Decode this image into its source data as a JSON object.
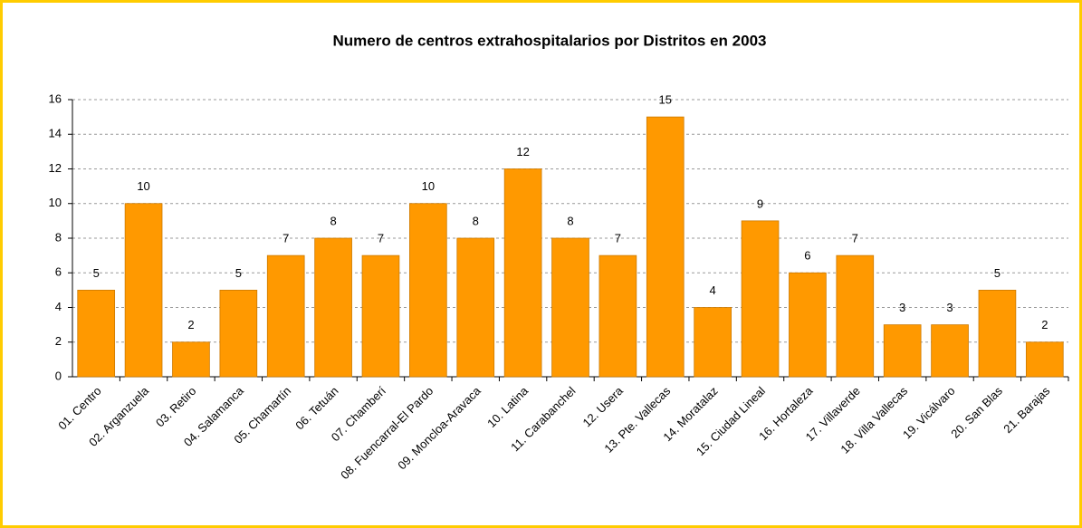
{
  "chart_data": {
    "type": "bar",
    "title": "Numero de centros extrahospitalarios por Distritos en 2003",
    "categories": [
      "01. Centro",
      "02. Arganzuela",
      "03. Retiro",
      "04. Salamanca",
      "05. Chamartín",
      "06. Tetuán",
      "07. Chamberí",
      "08. Fuencarral-El Pardo",
      "09. Moncloa-Aravaca",
      "10. Latina",
      "11. Carabanchel",
      "12. Usera",
      "13. Pte. Vallecas",
      "14. Moratalaz",
      "15. Ciudad Lineal",
      "16. Hortaleza",
      "17. Villaverde",
      "18. Villa Vallecas",
      "19. Vicálvaro",
      "20. San Blas",
      "21. Barajas"
    ],
    "values": [
      5,
      10,
      2,
      5,
      7,
      8,
      7,
      10,
      8,
      12,
      8,
      7,
      15,
      4,
      9,
      6,
      7,
      3,
      3,
      5,
      2
    ],
    "color": "#ff9900",
    "ylim": [
      0,
      16
    ],
    "yticks": [
      0,
      2,
      4,
      6,
      8,
      10,
      12,
      14,
      16
    ],
    "grid": true
  }
}
